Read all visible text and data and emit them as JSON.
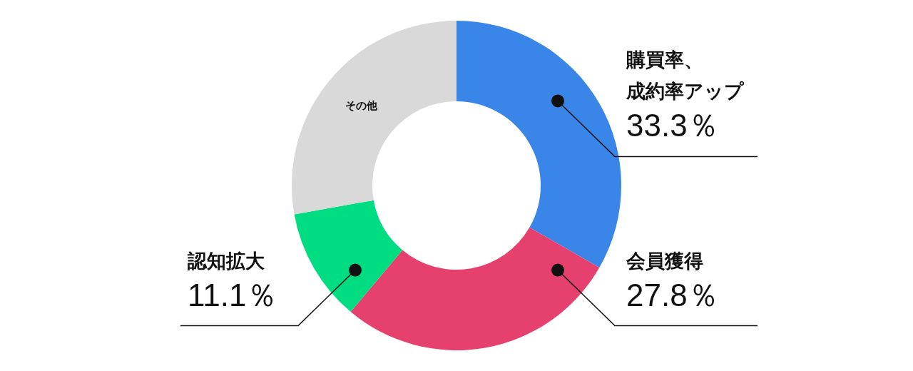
{
  "chart_data": {
    "type": "donut",
    "categories": [
      "購買率、成約率アップ",
      "会員獲得",
      "認知拡大",
      "その他"
    ],
    "values": [
      33.3,
      27.8,
      11.1,
      27.8
    ],
    "colors": [
      "#3a86e8",
      "#e6406e",
      "#00dc82",
      "#d9d9d9"
    ],
    "value_labels": [
      "33.3％",
      "27.8％",
      "11.1％",
      null
    ]
  }
}
